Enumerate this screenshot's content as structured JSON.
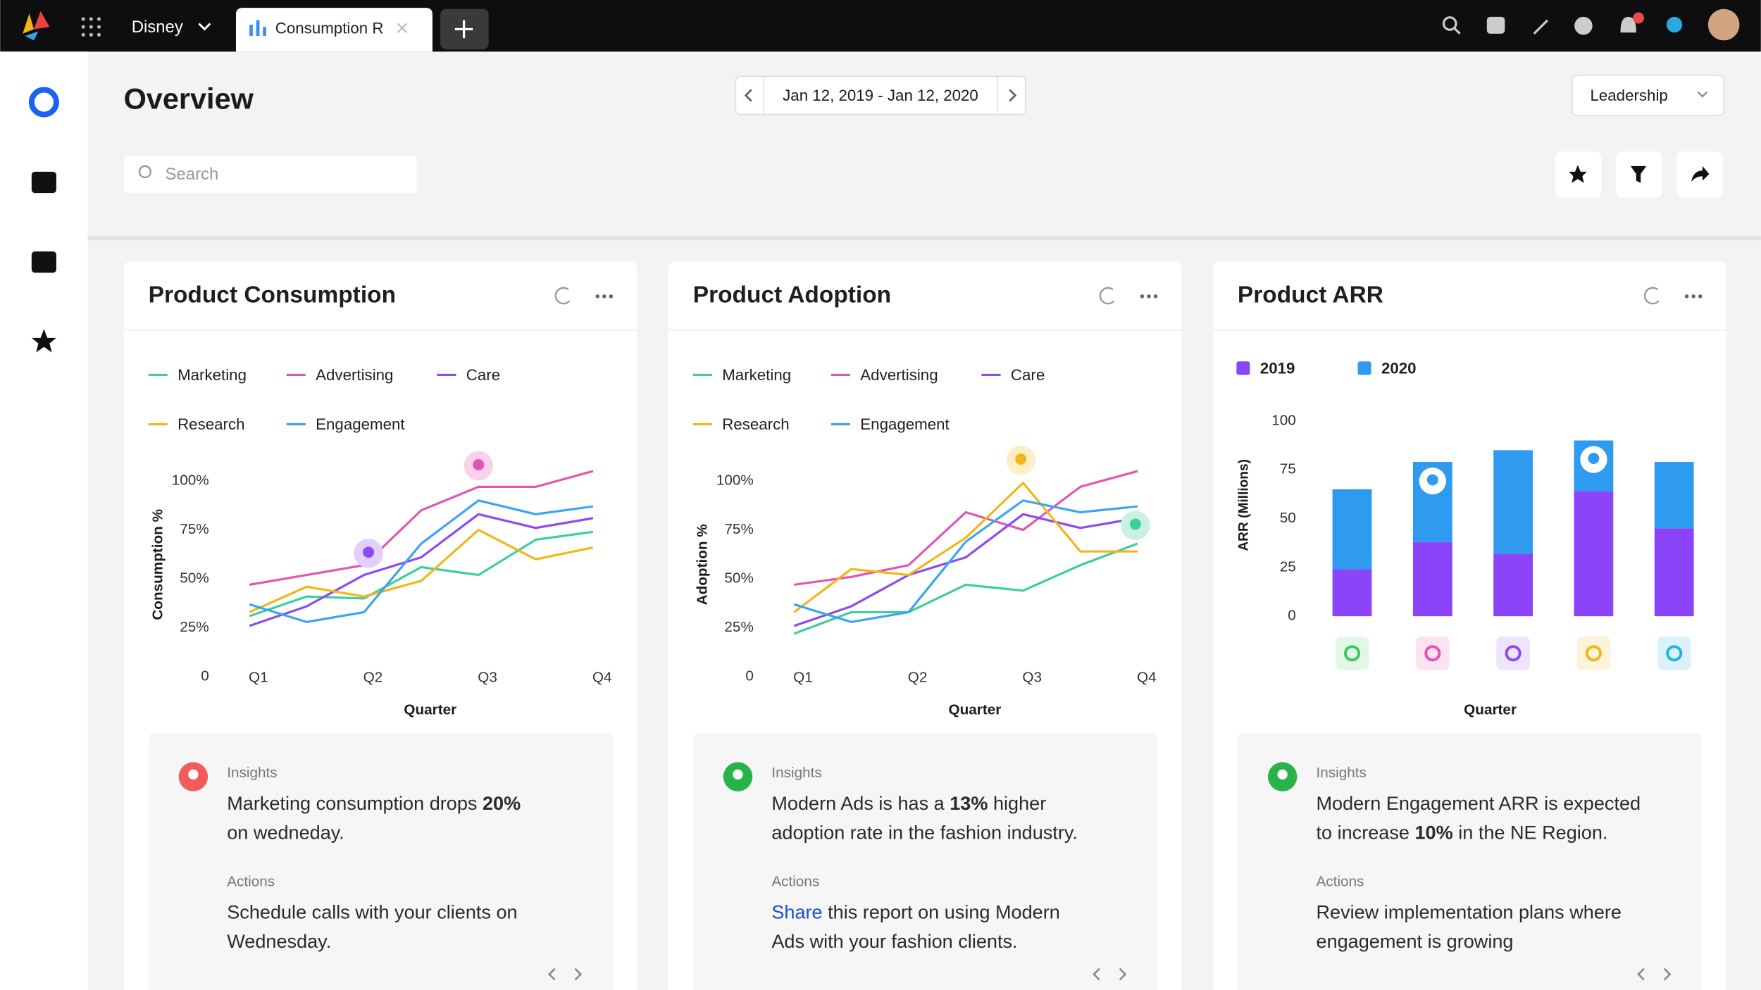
{
  "topbar": {
    "workspace": "Disney",
    "tab": "Consumption R"
  },
  "overview": {
    "title": "Overview",
    "date_range": "Jan 12, 2019 - Jan 12, 2020",
    "search_placeholder": "Search",
    "view": "Leadership"
  },
  "chart_data": [
    {
      "type": "line",
      "title": "Product Consumption",
      "x_label": "Quarter",
      "y_label": "Consumption %",
      "categories": [
        "Q1",
        null,
        "Q2",
        null,
        "Q3",
        null,
        "Q4"
      ],
      "ylim": [
        0,
        110
      ],
      "yticks": [
        0,
        {
          "value": 25,
          "label": "25%"
        },
        {
          "value": 50,
          "label": "50%"
        },
        {
          "value": 75,
          "label": "75%"
        },
        {
          "value": 100,
          "label": "100%"
        }
      ],
      "series": [
        {
          "name": "Marketing",
          "color": "#3ccf9a",
          "values": [
            31,
            41,
            40,
            56,
            52,
            70,
            74
          ]
        },
        {
          "name": "Advertising",
          "color": "#e056b4",
          "values": [
            47,
            52,
            57,
            85,
            97,
            97,
            105
          ]
        },
        {
          "name": "Care",
          "color": "#8c4bf0",
          "values": [
            26,
            36,
            52,
            61,
            83,
            76,
            81
          ]
        },
        {
          "name": "Research",
          "color": "#f2b51a",
          "values": [
            33,
            46,
            41,
            49,
            75,
            60,
            66
          ]
        },
        {
          "name": "Engagement",
          "color": "#3aa6f0",
          "values": [
            37,
            28,
            33,
            68,
            90,
            83,
            87
          ]
        }
      ]
    },
    {
      "type": "line",
      "title": "Product Adoption",
      "x_label": "Quarter",
      "y_label": "Adoption %",
      "categories": [
        "Q1",
        null,
        "Q2",
        null,
        "Q3",
        null,
        "Q4"
      ],
      "ylim": [
        0,
        110
      ],
      "yticks": [
        0,
        {
          "value": 25,
          "label": "25%"
        },
        {
          "value": 50,
          "label": "50%"
        },
        {
          "value": 75,
          "label": "75%"
        },
        {
          "value": 100,
          "label": "100%"
        }
      ],
      "series": [
        {
          "name": "Marketing",
          "color": "#3ccf9a",
          "values": [
            22,
            33,
            33,
            47,
            44,
            57,
            68
          ]
        },
        {
          "name": "Advertising",
          "color": "#e056b4",
          "values": [
            47,
            51,
            57,
            84,
            75,
            97,
            105
          ]
        },
        {
          "name": "Care",
          "color": "#8c4bf0",
          "values": [
            26,
            36,
            52,
            61,
            83,
            76,
            81
          ]
        },
        {
          "name": "Research",
          "color": "#f2b51a",
          "values": [
            33,
            55,
            52,
            71,
            99,
            64,
            64
          ]
        },
        {
          "name": "Engagement",
          "color": "#3aa6f0",
          "values": [
            37,
            28,
            33,
            69,
            90,
            84,
            87
          ]
        }
      ]
    },
    {
      "type": "stacked_bar",
      "title": "Product ARR",
      "x_label": "Quarter",
      "y_label": "ARR (Millions)",
      "categories": [
        null,
        null,
        null,
        null,
        null
      ],
      "ylim": [
        0,
        100
      ],
      "yticks": [
        0,
        25,
        50,
        75,
        100
      ],
      "series": [
        {
          "name": "2019",
          "color": "#8b44f7",
          "values": [
            24,
            38,
            32,
            64,
            45
          ]
        },
        {
          "name": "2020",
          "color": "#2f9bf0",
          "values": [
            41,
            41,
            53,
            26,
            34
          ]
        }
      ]
    }
  ],
  "insights": [
    {
      "heading": "Insights",
      "lines": [
        [
          "Marketing consumption drops ",
          {
            "text": "20%",
            "style": "bold"
          }
        ],
        [
          "on wedneday."
        ]
      ],
      "actions_heading": "Actions",
      "actions": [
        [
          "Schedule calls with your clients on"
        ],
        [
          "Wednesday."
        ]
      ]
    },
    {
      "heading": "Insights",
      "lines": [
        [
          "Modern Ads is has a ",
          {
            "text": "13%",
            "style": "bold"
          },
          " higher"
        ],
        [
          "adoption rate in the fashion industry."
        ]
      ],
      "actions_heading": "Actions",
      "actions": [
        [
          {
            "text": "Share",
            "style": "link"
          },
          " this report on using Modern"
        ],
        [
          "Ads with your fashion clients."
        ]
      ]
    },
    {
      "heading": "Insights",
      "lines": [
        [
          "Modern Engagement ARR is expected"
        ],
        [
          "to increase ",
          {
            "text": "10%",
            "style": "bold"
          },
          " in the NE Region."
        ]
      ],
      "actions_heading": "Actions",
      "actions": [
        [
          "Review implementation plans where"
        ],
        [
          "engagement is growing"
        ]
      ]
    }
  ]
}
